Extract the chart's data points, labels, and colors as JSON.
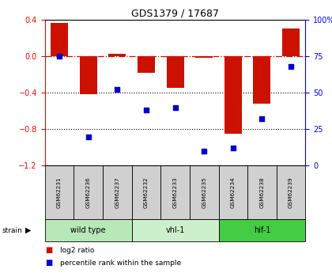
{
  "title": "GDS1379 / 17687",
  "samples": [
    "GSM62231",
    "GSM62236",
    "GSM62237",
    "GSM62232",
    "GSM62233",
    "GSM62235",
    "GSM62234",
    "GSM62238",
    "GSM62239"
  ],
  "log2_ratio": [
    0.36,
    -0.42,
    0.03,
    -0.18,
    -0.35,
    -0.02,
    -0.85,
    -0.52,
    0.3
  ],
  "percentile_rank": [
    75,
    20,
    52,
    38,
    40,
    10,
    12,
    32,
    68
  ],
  "groups": [
    {
      "label": "wild type",
      "start": 0,
      "end": 3,
      "color": "#b8e8b8"
    },
    {
      "label": "vhl-1",
      "start": 3,
      "end": 6,
      "color": "#ccf0cc"
    },
    {
      "label": "hif-1",
      "start": 6,
      "end": 9,
      "color": "#44cc44"
    }
  ],
  "bar_color": "#cc1100",
  "scatter_color": "#0000cc",
  "ylim_left": [
    -1.2,
    0.4
  ],
  "ylim_right": [
    0,
    100
  ],
  "yticks_left": [
    -1.2,
    -0.8,
    -0.4,
    0.0,
    0.4
  ],
  "yticks_right": [
    0,
    25,
    50,
    75,
    100
  ],
  "hline_y": 0.0,
  "dotted_lines": [
    -0.4,
    -0.8
  ],
  "bg_color": "#ffffff",
  "sample_box_color": "#d0d0d0"
}
